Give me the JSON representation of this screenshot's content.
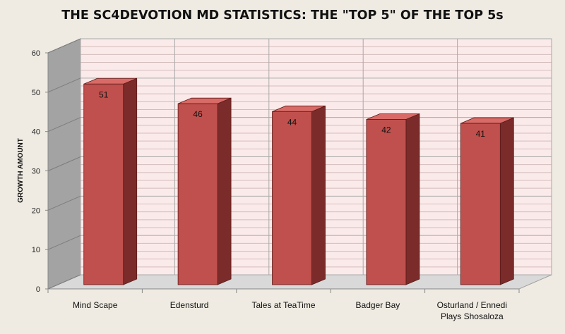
{
  "chart_data": {
    "type": "bar",
    "title": "THE SC4DEVOTION MD STATISTICS: THE \"TOP 5\" OF THE TOP 5s",
    "xlabel": "",
    "ylabel": "GROWTH AMOUNT",
    "categories": [
      "Mind Scape",
      "Edensturd",
      "Tales at TeaTime",
      "Badger Bay",
      "Osturland / Ennedi Plays Shosaloza"
    ],
    "category_lines": [
      [
        "Mind Scape"
      ],
      [
        "Edensturd"
      ],
      [
        "Tales at TeaTime"
      ],
      [
        "Badger Bay"
      ],
      [
        "Osturland / Ennedi",
        "Plays Shosaloza"
      ]
    ],
    "values": [
      51,
      46,
      44,
      42,
      41
    ],
    "data_labels": [
      "51",
      "46",
      "44",
      "42",
      "41"
    ],
    "yticks": [
      "0",
      "10",
      "20",
      "30",
      "40",
      "50",
      "60"
    ],
    "ylim": [
      0,
      60
    ],
    "grid": true,
    "legend": "none",
    "three_d": true,
    "colors": {
      "background": "#efebe2",
      "back_wall": "#fbeaea",
      "side_wall": "#a3a3a3",
      "floor": "#d9d9d9",
      "grid_major": "#a9a9a9",
      "grid_minor": "#d4bcbc",
      "bar_front": "#c0504d",
      "bar_top": "#d86b67",
      "bar_side": "#7b2c2a",
      "bar_outline": "#5a1b1a"
    }
  }
}
